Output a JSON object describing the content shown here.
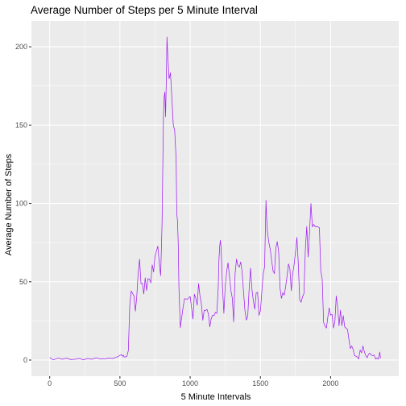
{
  "chart_data": {
    "type": "line",
    "title": "Average Number of Steps per 5 Minute Interval",
    "xlabel": "5 Minute Intervals",
    "ylabel": "Average Number of Steps",
    "xlim": [
      -130,
      2485
    ],
    "ylim": [
      -10.3,
      216.5
    ],
    "x_ticks": [
      0,
      500,
      1000,
      1500,
      2000
    ],
    "y_ticks": [
      0,
      50,
      100,
      150,
      200
    ],
    "x_tick_labels": [
      "0",
      "500",
      "1000",
      "1500",
      "2000"
    ],
    "y_tick_labels": [
      "0",
      "50",
      "100",
      "150",
      "200"
    ],
    "grid": true,
    "panel_background": "#ebebeb",
    "colors": {
      "line": "#a020f0",
      "grid": "#ffffff",
      "tick_text": "#4d4d4d"
    },
    "series": [
      {
        "x": [
          0,
          20,
          30,
          60,
          90,
          120,
          150,
          180,
          210,
          240,
          270,
          300,
          330,
          360,
          400,
          420,
          450,
          480,
          510,
          520,
          525,
          530,
          540,
          550,
          560,
          570,
          580,
          600,
          610,
          620,
          630,
          640,
          650,
          660,
          670,
          680,
          690,
          700,
          710,
          720,
          730,
          740,
          750,
          760,
          770,
          780,
          790,
          800,
          810,
          815,
          820,
          825,
          830,
          835,
          840,
          850,
          860,
          870,
          880,
          890,
          900,
          905,
          910,
          915,
          920,
          930,
          940,
          950,
          960,
          980,
          1000,
          1010,
          1020,
          1030,
          1040,
          1050,
          1060,
          1070,
          1080,
          1090,
          1100,
          1110,
          1120,
          1130,
          1140,
          1150,
          1160,
          1170,
          1180,
          1190,
          1200,
          1205,
          1210,
          1215,
          1220,
          1230,
          1240,
          1250,
          1260,
          1270,
          1280,
          1290,
          1300,
          1310,
          1320,
          1330,
          1340,
          1350,
          1360,
          1370,
          1380,
          1390,
          1400,
          1410,
          1420,
          1430,
          1440,
          1450,
          1460,
          1470,
          1480,
          1490,
          1500,
          1510,
          1520,
          1530,
          1540,
          1545,
          1550,
          1560,
          1570,
          1580,
          1590,
          1600,
          1610,
          1620,
          1630,
          1640,
          1650,
          1660,
          1670,
          1680,
          1690,
          1700,
          1710,
          1720,
          1730,
          1740,
          1750,
          1760,
          1770,
          1780,
          1790,
          1800,
          1810,
          1820,
          1830,
          1840,
          1850,
          1860,
          1870,
          1880,
          1890,
          1900,
          1910,
          1920,
          1930,
          1940,
          1950,
          1960,
          1970,
          1980,
          1990,
          2000,
          2010,
          2020,
          2030,
          2040,
          2050,
          2060,
          2070,
          2080,
          2090,
          2100,
          2110,
          2120,
          2130,
          2140,
          2150,
          2160,
          2170,
          2180,
          2190,
          2200,
          2210,
          2220,
          2230,
          2240,
          2250,
          2260,
          2270,
          2280,
          2290,
          2300,
          2310,
          2320,
          2330,
          2340,
          2350,
          2355
        ],
        "values": [
          1.7,
          0.3,
          0.2,
          1.3,
          0.5,
          1.2,
          0.3,
          0.5,
          1.1,
          0.1,
          1.0,
          0.5,
          1.5,
          0.7,
          0.9,
          1.2,
          1.0,
          2.0,
          3.5,
          2.4,
          3.1,
          2.0,
          2.0,
          2.5,
          6.1,
          34.8,
          44.1,
          41.0,
          31.2,
          40.4,
          55.7,
          64.4,
          48.8,
          49.0,
          42.2,
          52.5,
          44.4,
          52.0,
          51.6,
          49.3,
          60.8,
          56.2,
          66.5,
          69.6,
          72.7,
          62.3,
          53.9,
          87.1,
          156.0,
          167.8,
          171.2,
          155.4,
          177.3,
          206.2,
          195.9,
          179.6,
          183.4,
          167.0,
          150.2,
          146.4,
          128.7,
          93.6,
          88.6,
          75.1,
          46.8,
          20.7,
          27.3,
          33.9,
          39.2,
          38.8,
          40.6,
          33.4,
          26.2,
          42.0,
          39.6,
          35.0,
          48.8,
          41.0,
          35.8,
          25.4,
          31.8,
          31.6,
          32.4,
          29.4,
          21.2,
          26.5,
          28.6,
          28.4,
          30.5,
          29.8,
          46.5,
          64.1,
          72.4,
          76.4,
          72.2,
          47.4,
          29.8,
          47.3,
          56.8,
          62.1,
          53.4,
          44.4,
          39.6,
          24.3,
          55.1,
          64.4,
          60.4,
          59.3,
          62.6,
          56.3,
          43.7,
          31.6,
          25.5,
          28.1,
          45.5,
          58.7,
          45.0,
          37.8,
          32.5,
          42.8,
          43.3,
          28.5,
          31.4,
          43.2,
          55.0,
          59.4,
          102.0,
          89.8,
          82.4,
          75.2,
          70.7,
          63.8,
          57.0,
          55.2,
          71.5,
          75.6,
          69.3,
          45.9,
          39.4,
          43.0,
          41.5,
          47.0,
          53.6,
          61.4,
          58.3,
          44.3,
          55.2,
          60.9,
          68.9,
          78.3,
          61.4,
          38.3,
          36.9,
          40.4,
          42.5,
          70.2,
          85.3,
          65.8,
          81.9,
          100.0,
          85.1,
          86.6,
          85.1,
          85.3,
          85.0,
          84.5,
          56.8,
          51.9,
          24.1,
          21.8,
          20.4,
          27.4,
          33.3,
          28.6,
          29.3,
          20.5,
          24.0,
          40.9,
          33.6,
          21.9,
          31.8,
          22.0,
          28.4,
          21.2,
          20.4,
          19.6,
          13.4,
          7.3,
          9.0,
          6.9,
          2.9,
          2.5,
          2.0,
          0.7,
          6.4,
          4.6,
          9.0,
          5.3,
          3.0,
          1.5,
          3.7,
          4.4,
          3.2,
          2.8,
          3.3,
          0.6,
          1.3,
          0.5,
          5.1,
          1.1
        ],
        "color": "#a020f0"
      }
    ]
  }
}
